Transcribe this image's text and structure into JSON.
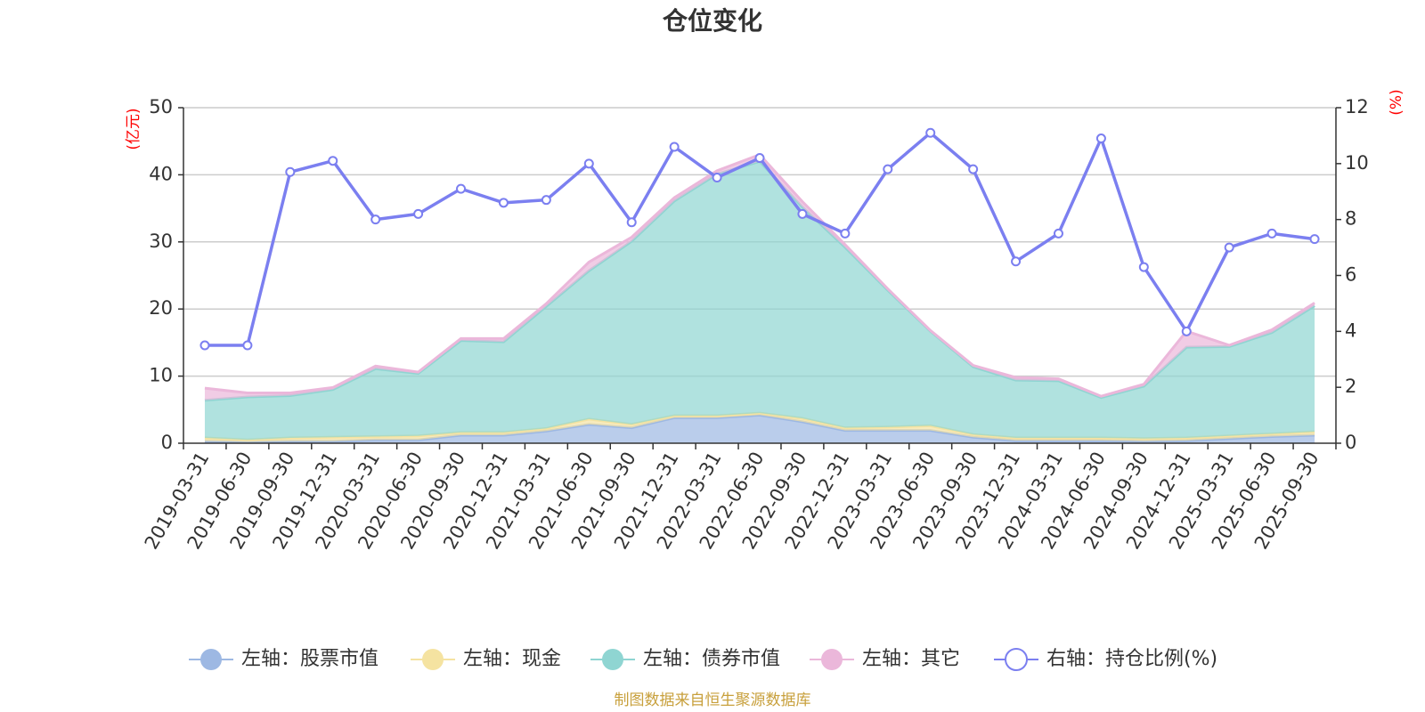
{
  "chart_data": {
    "type": "area",
    "title": "仓位变化",
    "left_axis": {
      "unit": "(亿元)",
      "min": 0,
      "max": 50,
      "ticks": [
        0,
        10,
        20,
        30,
        40,
        50
      ]
    },
    "right_axis": {
      "unit": "(%)",
      "min": 0,
      "max": 12,
      "ticks": [
        0,
        2,
        4,
        6,
        8,
        10,
        12
      ]
    },
    "categories": [
      "2019-03-31",
      "2019-06-30",
      "2019-09-30",
      "2019-12-31",
      "2020-03-31",
      "2020-06-30",
      "2020-09-30",
      "2020-12-31",
      "2021-03-31",
      "2021-06-30",
      "2021-09-30",
      "2021-12-31",
      "2022-03-31",
      "2022-06-30",
      "2022-09-30",
      "2022-12-31",
      "2023-03-31",
      "2023-06-30",
      "2023-09-30",
      "2023-12-31",
      "2024-03-31",
      "2024-06-30",
      "2024-09-30",
      "2024-12-31",
      "2025-03-31",
      "2025-06-30",
      "2025-09-30"
    ],
    "series": [
      {
        "name": "左轴：股票市值",
        "axis": "left",
        "kind": "stacked-area",
        "color": "#9db8e3",
        "values": [
          0.3,
          0.2,
          0.3,
          0.3,
          0.5,
          0.5,
          1.2,
          1.2,
          1.8,
          2.8,
          2.3,
          3.8,
          3.8,
          4.2,
          3.2,
          1.9,
          1.9,
          1.9,
          0.9,
          0.4,
          0.4,
          0.4,
          0.3,
          0.4,
          0.7,
          1.0,
          1.2
        ]
      },
      {
        "name": "左轴：现金",
        "axis": "left",
        "kind": "stacked-area",
        "color": "#f5e3a1",
        "values": [
          0.5,
          0.3,
          0.5,
          0.6,
          0.5,
          0.6,
          0.4,
          0.4,
          0.4,
          0.8,
          0.5,
          0.3,
          0.3,
          0.3,
          0.5,
          0.4,
          0.5,
          0.7,
          0.4,
          0.4,
          0.4,
          0.4,
          0.4,
          0.4,
          0.4,
          0.4,
          0.5
        ]
      },
      {
        "name": "左轴：债券市值",
        "axis": "left",
        "kind": "stacked-area",
        "color": "#8fd5d2",
        "values": [
          5.6,
          6.4,
          6.3,
          7.1,
          10.1,
          9.3,
          13.7,
          13.5,
          18.2,
          22.1,
          27.3,
          32.0,
          36.0,
          37.5,
          31.5,
          26.9,
          20.4,
          14.1,
          10.1,
          8.6,
          8.5,
          6.0,
          7.8,
          13.5,
          13.3,
          15.1,
          18.8
        ]
      },
      {
        "name": "左轴：其它",
        "axis": "left",
        "kind": "stacked-area",
        "color": "#ebb7da",
        "values": [
          1.8,
          0.6,
          0.4,
          0.3,
          0.4,
          0.2,
          0.3,
          0.5,
          0.4,
          1.3,
          0.6,
          0.5,
          0.5,
          1.0,
          0.8,
          0.4,
          0.2,
          0.1,
          0.2,
          0.4,
          0.3,
          0.2,
          0.3,
          2.4,
          0.2,
          0.4,
          0.4
        ]
      },
      {
        "name": "右轴：持仓比例(%)",
        "axis": "right",
        "kind": "line",
        "color": "#7b7ff0",
        "values": [
          3.5,
          3.5,
          9.7,
          10.1,
          8.0,
          8.2,
          9.1,
          8.6,
          8.7,
          10.0,
          7.9,
          10.6,
          9.5,
          10.2,
          8.2,
          7.5,
          9.8,
          11.1,
          9.8,
          6.5,
          7.5,
          10.9,
          6.3,
          4.0,
          7.0,
          7.5,
          7.3
        ]
      }
    ],
    "legend_position": "bottom",
    "grid": true
  },
  "source_note": "制图数据来自恒生聚源数据库"
}
